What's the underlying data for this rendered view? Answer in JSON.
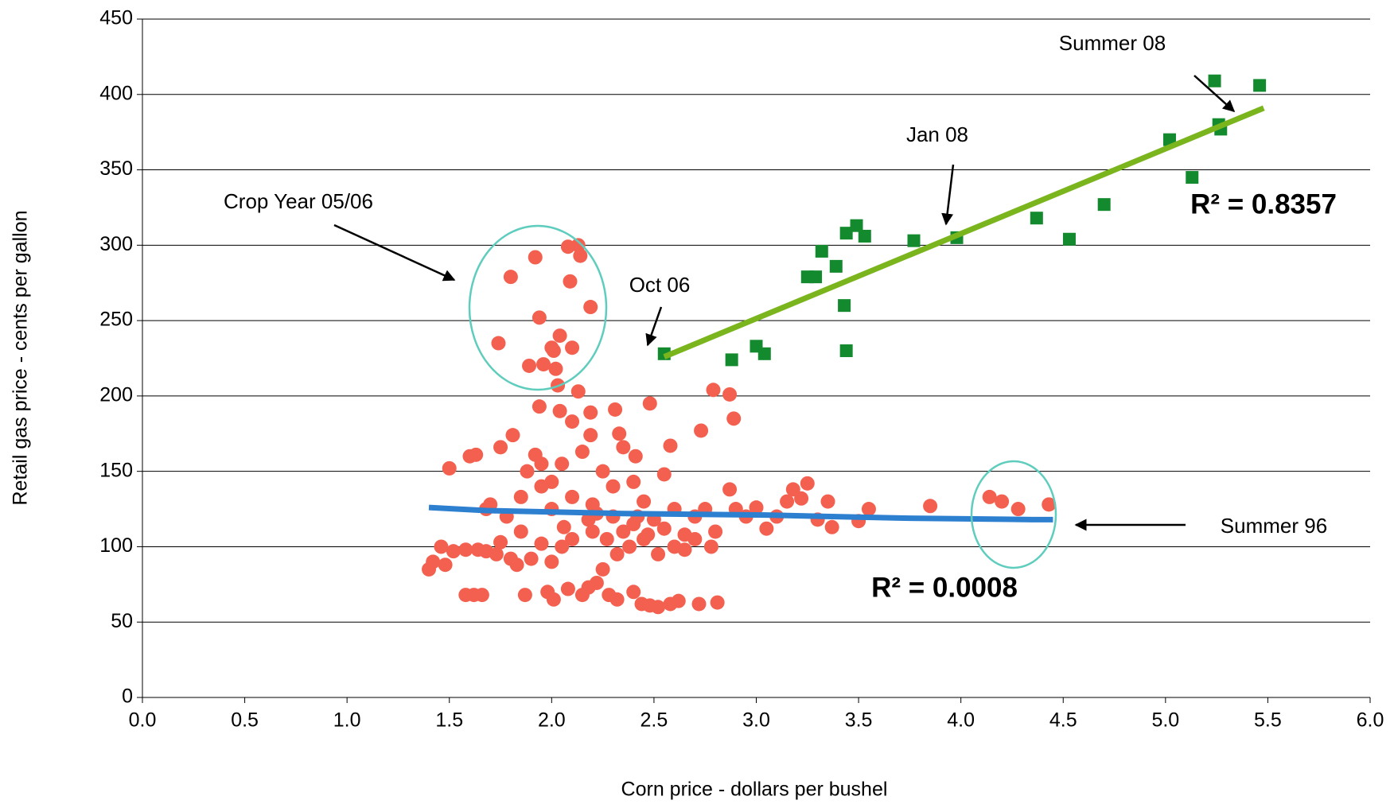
{
  "chart_data": {
    "type": "scatter",
    "x_label": "Corn price - dollars per bushel",
    "y_label": "Retail gas price - cents per gallon",
    "xlim": [
      0,
      6
    ],
    "ylim": [
      0,
      450
    ],
    "xticks": [
      {
        "value": 0,
        "label": "0.0"
      },
      0.5,
      {
        "value": 1,
        "label": "1.0"
      },
      1.5,
      {
        "value": 2,
        "label": "2.0"
      },
      2.5,
      {
        "value": 3,
        "label": "3.0"
      },
      3.5,
      {
        "value": 4,
        "label": "4.0"
      },
      4.5,
      {
        "value": 5,
        "label": "5.0"
      },
      5.5,
      {
        "value": 6,
        "label": "6.0"
      }
    ],
    "yticks": [
      0,
      50,
      100,
      150,
      200,
      250,
      300,
      350,
      400,
      450
    ],
    "grid": true,
    "series": [
      {
        "color": "#f4604f",
        "marker": "circle",
        "x": [
          1.92,
          1.8,
          2.08,
          2.13,
          2.14,
          2.09,
          2.19,
          1.94,
          2.04,
          2.0,
          2.01,
          2.1,
          1.74,
          1.96,
          2.02,
          1.89,
          2.03,
          2.13,
          1.94,
          2.04,
          2.1,
          2.19,
          2.31,
          2.48,
          2.79,
          2.87,
          2.89,
          2.73,
          2.58,
          2.19,
          2.33,
          1.81,
          1.75,
          1.92,
          1.6,
          1.63,
          1.5,
          1.88,
          2.05,
          2.15,
          2.25,
          2.35,
          2.41,
          2.55,
          1.7,
          1.78,
          1.85,
          1.95,
          2.0,
          2.1,
          2.2,
          2.3,
          2.4,
          2.45,
          2.5,
          2.55,
          2.6,
          2.65,
          2.7,
          2.75,
          2.8,
          2.87,
          2.9,
          2.95,
          3.0,
          3.05,
          3.1,
          3.15,
          3.18,
          3.22,
          3.25,
          3.3,
          3.35,
          3.37,
          3.5,
          3.55,
          3.85,
          4.14,
          4.2,
          4.28,
          4.43,
          1.4,
          1.42,
          1.48,
          1.52,
          1.46,
          1.58,
          1.64,
          1.68,
          1.73,
          1.8,
          1.83,
          1.9,
          1.95,
          2.0,
          2.05,
          1.58,
          1.62,
          1.66,
          1.87,
          1.98,
          2.01,
          2.08,
          2.15,
          2.18,
          2.22,
          2.28,
          2.32,
          2.4,
          2.44,
          2.48,
          2.52,
          2.58,
          2.62,
          2.72,
          2.81,
          2.25,
          2.32,
          2.38,
          2.45,
          2.52,
          2.6,
          2.65,
          2.7,
          2.78,
          2.2,
          2.27,
          2.35,
          2.42,
          2.47,
          1.75,
          1.85,
          2.1,
          2.0,
          1.95,
          2.3,
          2.4,
          2.22,
          2.18,
          2.06,
          1.68
        ],
        "values": [
          292,
          279,
          299,
          300,
          293,
          276,
          259,
          252,
          240,
          232,
          230,
          232,
          235,
          221,
          218,
          220,
          207,
          203,
          193,
          190,
          183,
          189,
          191,
          195,
          204,
          201,
          185,
          177,
          167,
          174,
          175,
          174,
          166,
          161,
          160,
          161,
          152,
          150,
          155,
          163,
          150,
          166,
          160,
          148,
          128,
          120,
          133,
          140,
          125,
          133,
          128,
          120,
          115,
          130,
          118,
          112,
          125,
          108,
          120,
          125,
          110,
          138,
          125,
          120,
          126,
          112,
          120,
          130,
          138,
          132,
          142,
          118,
          130,
          113,
          117,
          125,
          127,
          133,
          130,
          125,
          128,
          85,
          90,
          88,
          97,
          100,
          98,
          98,
          97,
          95,
          92,
          88,
          92,
          102,
          90,
          100,
          68,
          68,
          68,
          68,
          70,
          65,
          72,
          68,
          73,
          76,
          68,
          65,
          70,
          62,
          61,
          60,
          62,
          64,
          62,
          63,
          85,
          95,
          100,
          105,
          95,
          100,
          98,
          105,
          100,
          110,
          105,
          110,
          120,
          108,
          103,
          110,
          105,
          143,
          155,
          140,
          143,
          122,
          118,
          113,
          125
        ]
      },
      {
        "color": "#138a2e",
        "marker": "square",
        "x": [
          2.55,
          2.88,
          3.0,
          3.04,
          3.25,
          3.29,
          3.32,
          3.39,
          3.43,
          3.44,
          3.44,
          3.49,
          3.53,
          3.77,
          3.98,
          4.37,
          4.53,
          4.7,
          5.02,
          5.13,
          5.24,
          5.26,
          5.27,
          5.46
        ],
        "values": [
          228,
          224,
          233,
          228,
          279,
          279,
          296,
          286,
          260,
          308,
          230,
          313,
          306,
          303,
          305,
          318,
          304,
          327,
          370,
          345,
          409,
          380,
          377,
          406
        ]
      }
    ],
    "trendlines": [
      {
        "color": "#2d7fd0",
        "x": [
          1.4,
          1.68,
          2.35,
          3.05,
          3.7,
          4.35,
          4.45
        ],
        "values": [
          126,
          124,
          122,
          121,
          119,
          118,
          118
        ]
      },
      {
        "color": "#7ab51d",
        "x": [
          2.55,
          5.48
        ],
        "values": [
          226,
          391
        ]
      }
    ],
    "annotations": [
      "Summer 08",
      "Jan 08",
      "Crop Year 05/06",
      "Oct 06",
      "Summer 96"
    ],
    "r2_labels": [
      {
        "text": "R² = 0.8357",
        "color": "#000000"
      },
      {
        "text": "R² = 0.0008",
        "color": "#2d7fd0"
      }
    ]
  }
}
